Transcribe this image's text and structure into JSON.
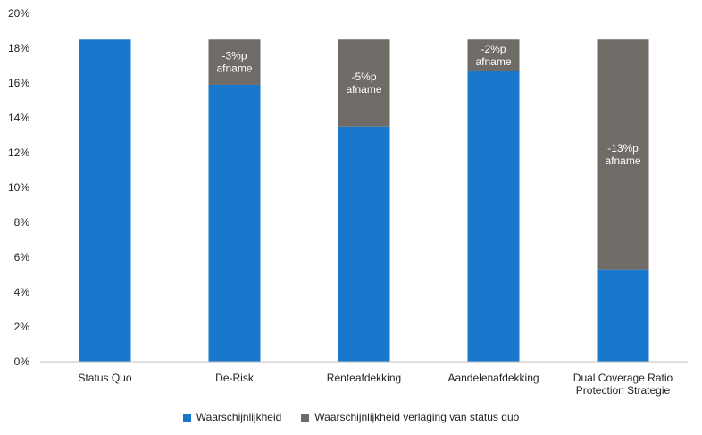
{
  "chart_data": {
    "type": "bar",
    "stacked": true,
    "categories": [
      "Status Quo",
      "De-Risk",
      "Renteafdekking",
      "Aandelenafdekking",
      "Dual Coverage Ratio\nProtection Strategie"
    ],
    "series": [
      {
        "name": "Waarschijnlijkheid",
        "color": "#1A78CC",
        "values": [
          18.5,
          15.9,
          13.5,
          16.7,
          5.3
        ]
      },
      {
        "name": "Waarschijnlijkheid verlaging van status quo",
        "color": "#6F6B67",
        "values": [
          0,
          2.6,
          5.0,
          1.8,
          13.2
        ]
      }
    ],
    "bar_labels": [
      "",
      "-3%p\nafname",
      "-5%p\nafname",
      "-2%p\nafname",
      "-13%p\nafname"
    ],
    "y_ticks": [
      "0%",
      "2%",
      "4%",
      "6%",
      "8%",
      "10%",
      "12%",
      "14%",
      "16%",
      "18%",
      "20%"
    ],
    "ylim": [
      0,
      20
    ],
    "grid": false,
    "legend_position": "bottom"
  }
}
